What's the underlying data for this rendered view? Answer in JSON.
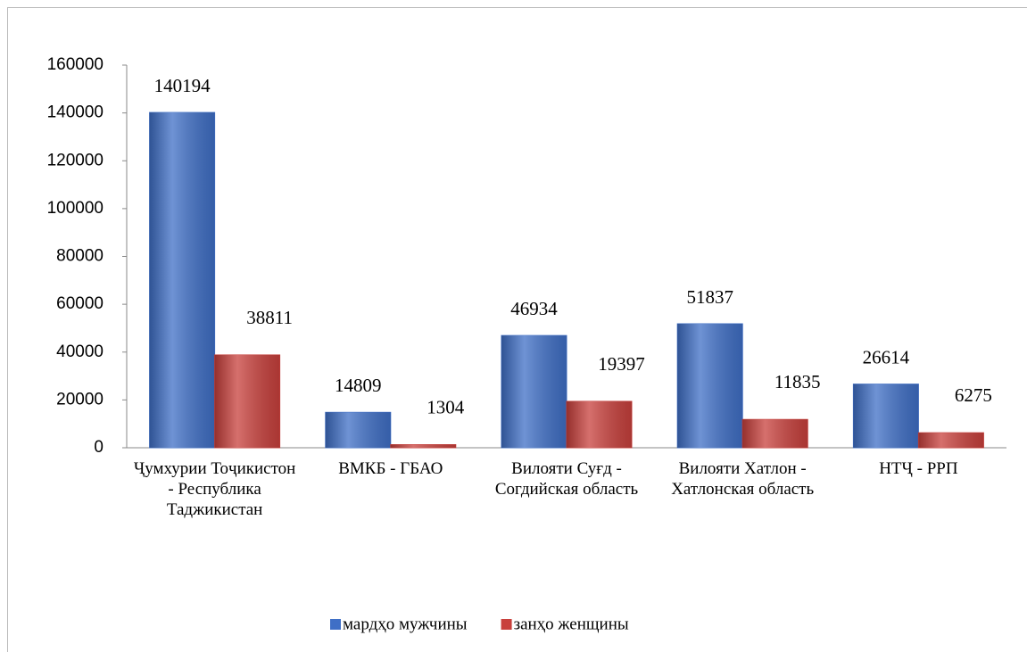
{
  "chart_data": {
    "type": "bar",
    "categories": [
      "Ҷумхурии Тоҷикистон - Республика Таджикистан",
      "ВМКБ - ГБАО",
      "Вилояти Суғд - Согдийская область",
      "Вилояти Хатлон - Хатлонская область",
      "НТҶ - РРП"
    ],
    "series": [
      {
        "name": "мардҳо мужчины",
        "color": "#3f6fc6",
        "values": [
          140194,
          14809,
          46934,
          51837,
          26614
        ]
      },
      {
        "name": "занҳо женщины",
        "color": "#c8403c",
        "values": [
          38811,
          1304,
          19397,
          11835,
          6275
        ]
      }
    ],
    "ylim": [
      0,
      160000
    ],
    "yticks": [
      0,
      20000,
      40000,
      60000,
      80000,
      100000,
      120000,
      140000,
      160000
    ],
    "grid": false,
    "legend": "bottom"
  }
}
